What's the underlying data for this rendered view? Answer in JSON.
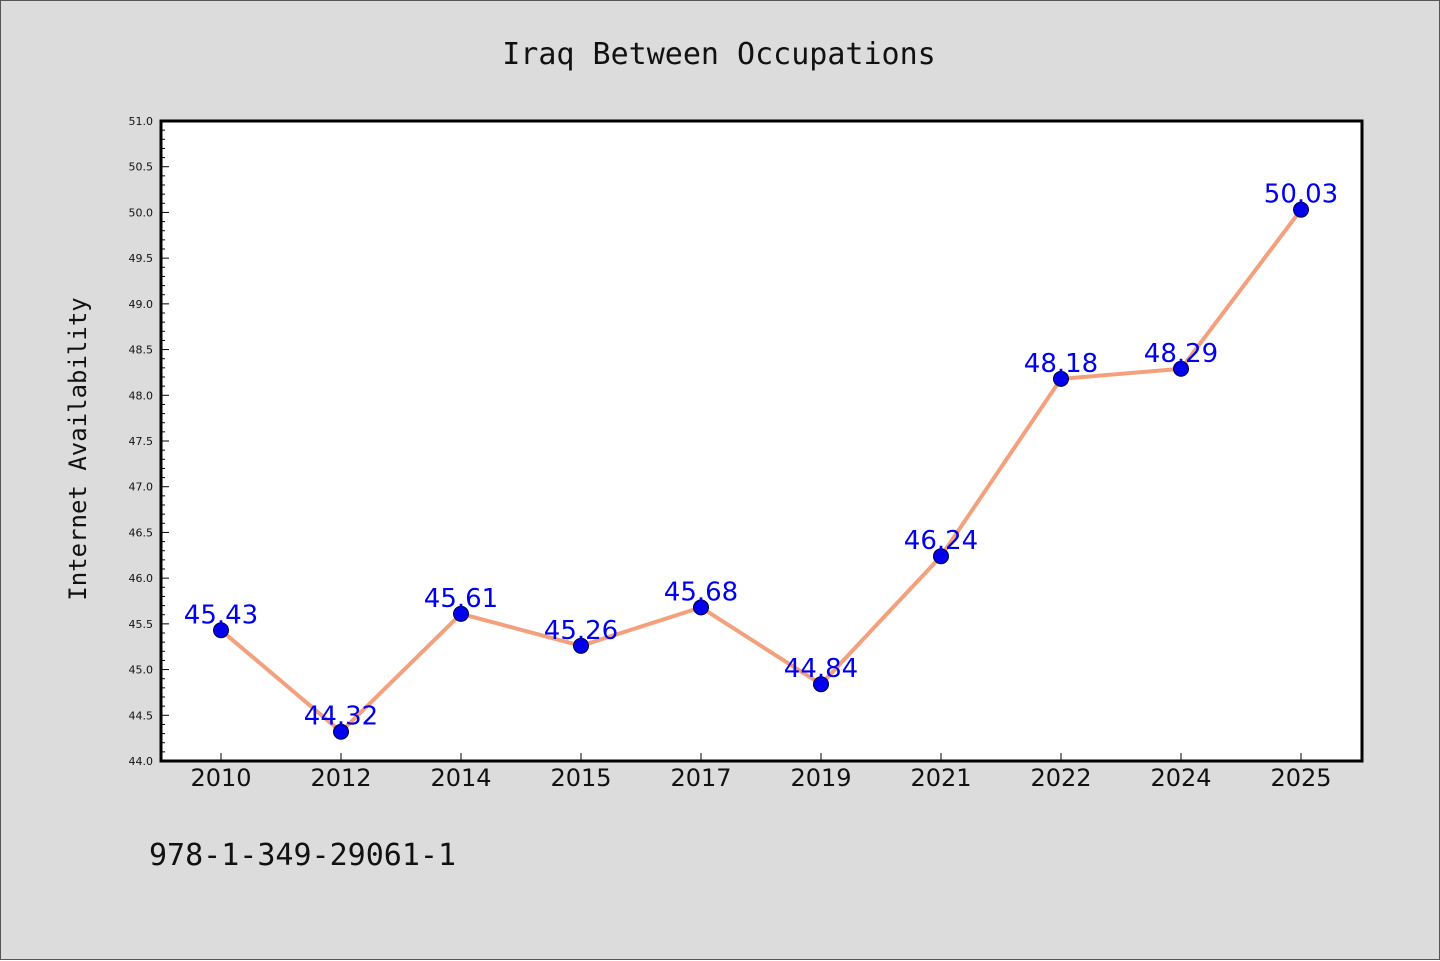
{
  "chart_data": {
    "type": "line",
    "title": "Iraq Between Occupations",
    "xlabel": "",
    "ylabel": "Internet Availability",
    "categories": [
      "2010",
      "2012",
      "2014",
      "2015",
      "2017",
      "2019",
      "2021",
      "2022",
      "2024",
      "2025"
    ],
    "series": [
      {
        "values": [
          45.43,
          44.32,
          45.61,
          45.26,
          45.68,
          44.84,
          46.24,
          48.18,
          48.29,
          50.03
        ],
        "data_labels": [
          "45.43",
          "44.32",
          "45.61",
          "45.26",
          "45.68",
          "44.84",
          "46.24",
          "48.18",
          "48.29",
          "50.03"
        ],
        "line_color": "#f4a07c",
        "marker_color": "#0000ee",
        "label_color": "#0000ee"
      }
    ],
    "ylim": [
      44.0,
      51.0
    ],
    "yticks": [
      "44.0",
      "44.5",
      "45.0",
      "45.5",
      "46.0",
      "46.5",
      "47.0",
      "47.5",
      "48.0",
      "48.5",
      "49.0",
      "49.5",
      "50.0",
      "50.5",
      "51.0"
    ],
    "grid": false,
    "legend": "none"
  },
  "footnote": "978-1-349-29061-1",
  "colors": {
    "figure_background": "#dcdcdc",
    "plot_background": "#ffffff",
    "axes": "#000000"
  }
}
